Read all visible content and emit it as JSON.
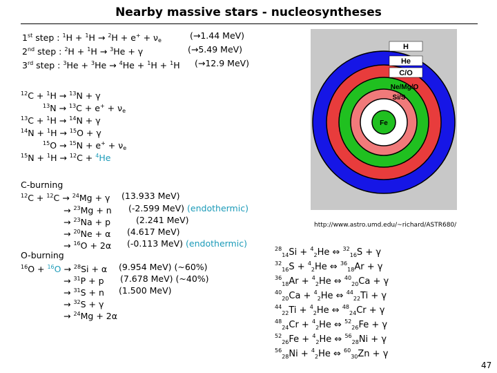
{
  "title": "Nearby massive stars - nucleosyntheses",
  "pp_chain": {
    "step1": {
      "label": "1",
      "ord": "st",
      "word": "step :",
      "p1": "1",
      "p2": "1",
      "p3": "2",
      "nu": "e",
      "energy": "(→1.44 MeV)"
    },
    "step2": {
      "label": "2",
      "ord": "nd",
      "word": "step :",
      "p1": "2",
      "p2": "1",
      "p3": "3",
      "energy": "(→5.49 MeV)"
    },
    "step3": {
      "label": "3",
      "ord": "rd",
      "word": "step :",
      "p1": "3",
      "p2": "3",
      "p3": "4",
      "p4": "1",
      "p5": "1",
      "energy": "(→12.9 MeV)"
    }
  },
  "cno": [
    "12C + 1H → 13N + γ",
    "13N → 13C + e+ + νe",
    "13C + 1H → 14N + γ",
    "14N + 1H → 15O + γ",
    "15O → 15N + e+ + νe",
    "15N + 1H → 12C + 4He"
  ],
  "c_burning": {
    "header": "C-burning",
    "rows": [
      {
        "product": "24Mg + γ",
        "energy": "(13.933 MeV)",
        "note": ""
      },
      {
        "product": "23Mg + n",
        "energy": "(-2.599 MeV)",
        "note": "(endothermic)"
      },
      {
        "product": "23Na + p",
        "energy": "(2.241 MeV)",
        "note": ""
      },
      {
        "product": "20Ne + α",
        "energy": "(4.617 MeV)",
        "note": ""
      },
      {
        "product": "16O + 2α",
        "energy": "(-0.113 MeV)",
        "note": "(endothermic)"
      }
    ]
  },
  "o_burning": {
    "header": "O-burning",
    "rows": [
      {
        "product": "28Si + α",
        "energy": "(9.954 MeV)",
        "pct": "(~60%)"
      },
      {
        "product": "31P + p",
        "energy": "(7.678 MeV)",
        "pct": "(~40%)"
      },
      {
        "product": "31S + n",
        "energy": "(1.500 MeV)",
        "pct": ""
      },
      {
        "product": "32S + γ",
        "energy": "",
        "pct": ""
      },
      {
        "product": "24Mg + 2α",
        "energy": "",
        "pct": ""
      }
    ]
  },
  "onion_layers": [
    "H",
    "He",
    "C/O",
    "Ne/Mg/O",
    "Si/S",
    "Fe"
  ],
  "layer_colors": [
    "#1616e6",
    "#e83c3c",
    "#20c020",
    "#f07a7a",
    "#ffffff",
    "#20c020"
  ],
  "source_url": "http://www.astro.umd.edu/~richard/ASTR680/",
  "alpha_chain": [
    {
      "a": "28",
      "z": "14",
      "el": "Si",
      "b": "32",
      "bz": "16",
      "prod": "S"
    },
    {
      "a": "32",
      "z": "16",
      "el": "S",
      "b": "36",
      "bz": "18",
      "prod": "Ar"
    },
    {
      "a": "36",
      "z": "18",
      "el": "Ar",
      "b": "40",
      "bz": "20",
      "prod": "Ca"
    },
    {
      "a": "40",
      "z": "20",
      "el": "Ca",
      "b": "44",
      "bz": "22",
      "prod": "Ti"
    },
    {
      "a": "44",
      "z": "22",
      "el": "Ti",
      "b": "48",
      "bz": "24",
      "prod": "Cr"
    },
    {
      "a": "48",
      "z": "24",
      "el": "Cr",
      "b": "52",
      "bz": "26",
      "prod": "Fe"
    },
    {
      "a": "52",
      "z": "26",
      "el": "Fe",
      "b": "56",
      "bz": "28",
      "prod": "Ni"
    },
    {
      "a": "56",
      "z": "28",
      "el": "Ni",
      "b": "60",
      "bz": "30",
      "prod": "Zn"
    }
  ],
  "page_number": "47"
}
